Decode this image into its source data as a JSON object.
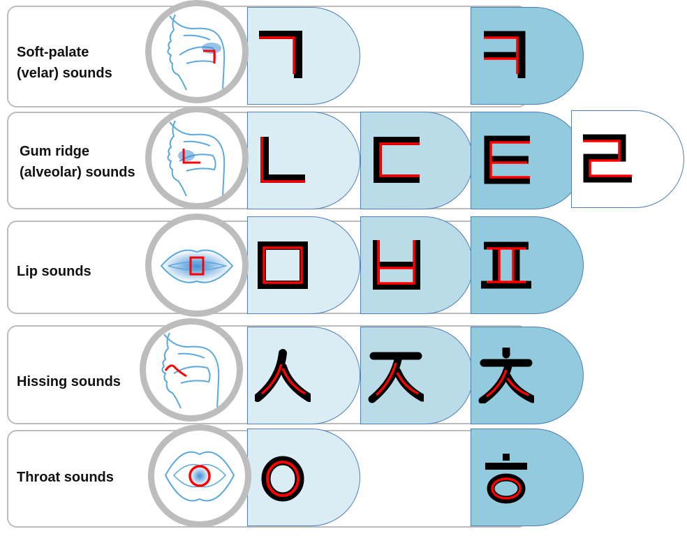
{
  "rows": [
    {
      "label": [
        "Soft-palate",
        "(velar) sounds"
      ],
      "organ": "velar-mouth-icon",
      "letters": [
        "ㄱ",
        "ㅋ"
      ]
    },
    {
      "label": [
        "Gum ridge",
        "(alveolar) sounds"
      ],
      "organ": "alveolar-mouth-icon",
      "letters": [
        "ㄴ",
        "ㄷ",
        "ㅌ",
        "ㄹ"
      ]
    },
    {
      "label": [
        "Lip sounds"
      ],
      "organ": "lips-icon",
      "letters": [
        "ㅁ",
        "ㅂ",
        "ㅍ"
      ]
    },
    {
      "label": [
        "Hissing sounds"
      ],
      "organ": "teeth-mouth-icon",
      "letters": [
        "ㅅ",
        "ㅈ",
        "ㅊ"
      ]
    },
    {
      "label": [
        "Throat sounds"
      ],
      "organ": "throat-icon",
      "letters": [
        "ㅇ",
        "ㅎ"
      ]
    }
  ],
  "colors": {
    "tab_light": "#daedf5",
    "tab_mid": "#b9dce8",
    "tab_dark": "#92cbdd",
    "tab_white": "#ffffff",
    "tab_border": "#4f7fb5",
    "row_border": "#bcbcbc",
    "circle_ring": "#bdbdbd",
    "glyph_black": "#000000",
    "glyph_red": "#ff0000",
    "organ_line": "#5aa8dc",
    "organ_fill": "#3f8fd6"
  }
}
